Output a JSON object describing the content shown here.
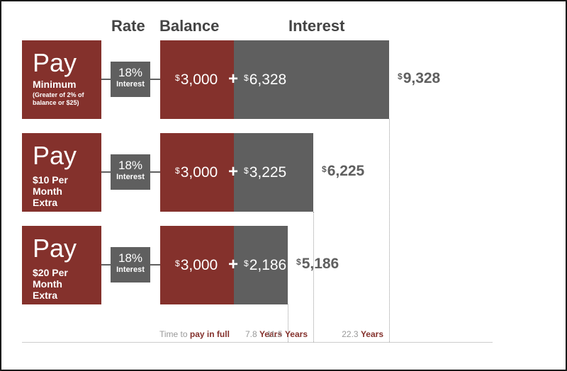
{
  "headers": {
    "rate": "Rate",
    "balance": "Balance",
    "interest": "Interest"
  },
  "chart_data": {
    "type": "bar",
    "stacked": true,
    "unit_symbol": "$",
    "rows": [
      {
        "pay_word": "Pay",
        "pay_plan": "Minimum",
        "pay_note": "(Greater of 2% of balance or $25)",
        "rate": "18%",
        "rate_unit": "Interest",
        "balance": 3000,
        "interest": 6328,
        "total": 9328,
        "years": 22.3,
        "balance_label": "3,000",
        "interest_label": "6,328",
        "total_label": "9,328"
      },
      {
        "pay_word": "Pay",
        "pay_plan": "$10 Per Month Extra",
        "pay_note": "",
        "rate": "18%",
        "rate_unit": "Interest",
        "balance": 3000,
        "interest": 3225,
        "total": 6225,
        "years": 11.5,
        "balance_label": "3,000",
        "interest_label": "3,225",
        "total_label": "6,225"
      },
      {
        "pay_word": "Pay",
        "pay_plan": "$20 Per Month Extra",
        "pay_note": "",
        "rate": "18%",
        "rate_unit": "Interest",
        "balance": 3000,
        "interest": 2186,
        "total": 5186,
        "years": 7.8,
        "balance_label": "3,000",
        "interest_label": "2,186",
        "total_label": "5,186"
      }
    ],
    "axis": {
      "prefix": "Time to ",
      "emphasis": "pay in full",
      "years_word": "Years",
      "labels": [
        "7.8",
        "11.5",
        "22.3"
      ]
    }
  }
}
